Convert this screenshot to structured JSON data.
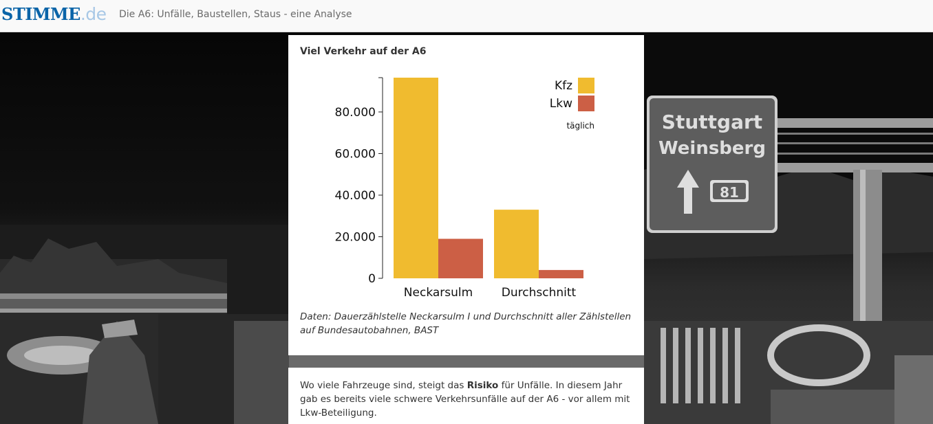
{
  "header": {
    "logo_main": "STIMME",
    "logo_tld": ".de",
    "headline": "Die A6: Unfälle, Baustellen, Staus - eine Analyse"
  },
  "photo": {
    "sign_line1": "Stuttgart",
    "sign_line2": "Weinsberg",
    "sign_exit": "81"
  },
  "colors": {
    "kfz": "#f0bb2f",
    "lkw": "#cc5f45",
    "logo": "#0a64a8"
  },
  "card": {
    "title": "Viel Verkehr auf der A6",
    "source": "Daten: Dauerzählstelle Neckarsulm I und Durchschnitt aller Zählstellen auf Bundesautobahnen, BAST"
  },
  "chart_data": {
    "type": "bar",
    "title": "Viel Verkehr auf der A6",
    "categories": [
      "Neckarsulm",
      "Durchschnitt"
    ],
    "series": [
      {
        "name": "Kfz",
        "values": [
          96500,
          33000
        ]
      },
      {
        "name": "Lkw",
        "values": [
          19000,
          4000
        ]
      }
    ],
    "ylim": [
      0,
      96500
    ],
    "yticks": [
      0,
      20000,
      40000,
      60000,
      80000
    ],
    "ytick_labels": [
      "0",
      "20.000",
      "40.000",
      "60.000",
      "80.000"
    ],
    "legend_note": "täglich",
    "legend_position": "top-right"
  },
  "body": {
    "text_before": "Wo viele Fahrzeuge sind, steigt das ",
    "bold": "Risiko",
    "text_after": " für Unfälle. In diesem Jahr gab es bereits viele schwere Verkehrsunfälle auf der A6 - vor allem mit Lkw-Beteiligung."
  }
}
